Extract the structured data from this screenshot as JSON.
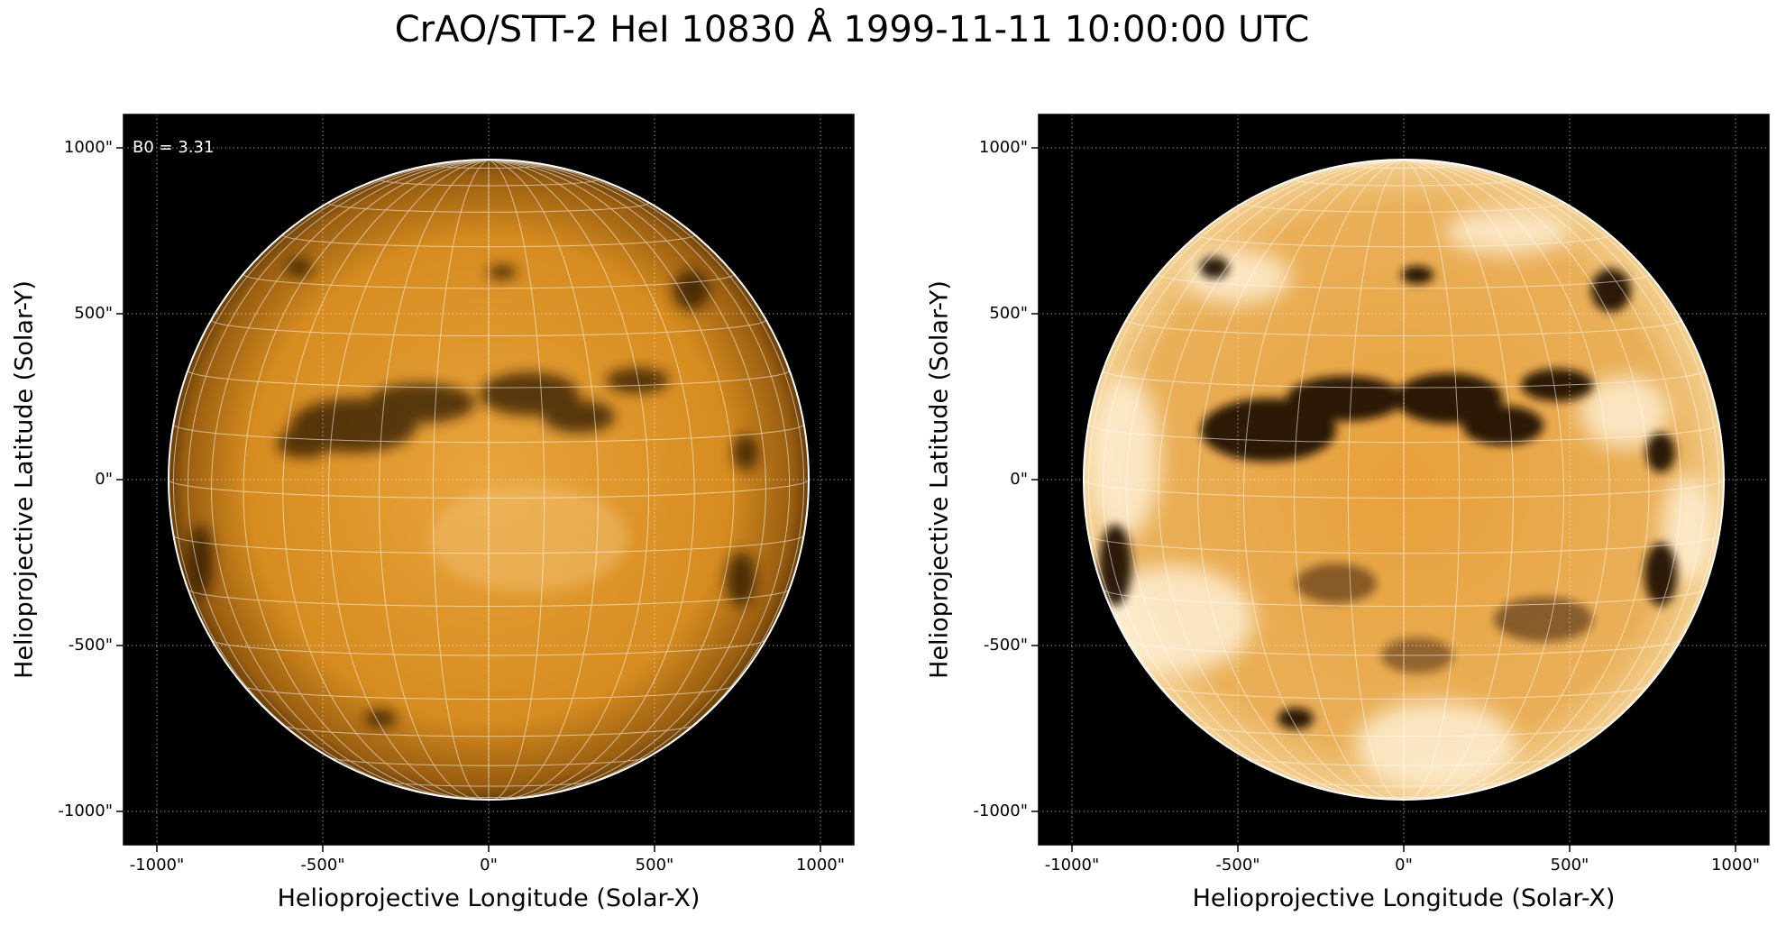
{
  "title": "CrAO/STT-2 HeI 10830 Å 1999-11-11 10:00:00 UTC",
  "annotation": "B0 = 3.31",
  "colors": {
    "background": "#000000",
    "disk_base": "#d58c1a",
    "grid": "#ffffff"
  },
  "axes": {
    "xlabel": "Helioprojective Longitude (Solar-X)",
    "ylabel": "Helioprojective Latitude (Solar-Y)",
    "xticks": [
      "-1000\"",
      "-500\"",
      "0\"",
      "500\"",
      "1000\""
    ],
    "yticks": [
      "1000\"",
      "500\"",
      "0\"",
      "-500\"",
      "-1000\""
    ],
    "tick_values": [
      -1000,
      -500,
      0,
      500,
      1000
    ],
    "range_arcsec": [
      -1100,
      1100
    ],
    "solar_radius_arcsec": 965
  },
  "panels": [
    {
      "name": "left",
      "display": "standard intensity",
      "annotation_shown": true
    },
    {
      "name": "right",
      "display": "high contrast",
      "annotation_shown": false
    }
  ]
}
